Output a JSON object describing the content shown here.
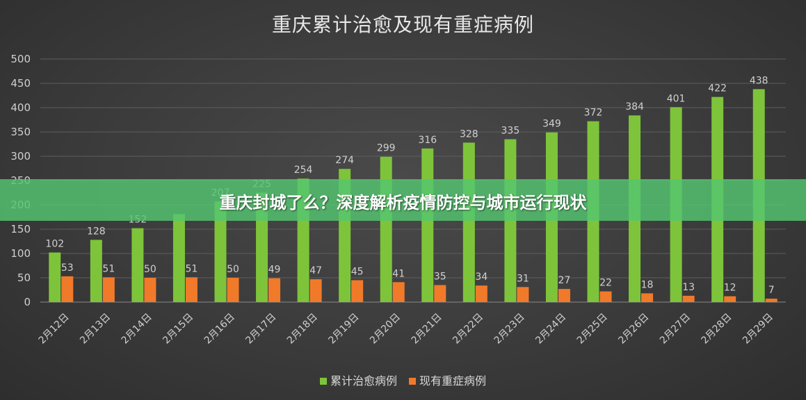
{
  "chart_data": {
    "type": "bar",
    "title": "重庆累计治愈及现有重症病例",
    "categories": [
      "2月12日",
      "2月13日",
      "2月14日",
      "2月15日",
      "2月16日",
      "2月17日",
      "2月18日",
      "2月19日",
      "2月20日",
      "2月21日",
      "2月22日",
      "2月23日",
      "2月24日",
      "2月25日",
      "2月26日",
      "2月27日",
      "2月28日",
      "2月29日"
    ],
    "series": [
      {
        "name": "累计治愈病例",
        "color": "#7ec43a",
        "values": [
          102,
          128,
          152,
          181,
          207,
          225,
          254,
          274,
          299,
          316,
          328,
          335,
          349,
          372,
          384,
          401,
          422,
          438
        ]
      },
      {
        "name": "现有重症病例",
        "color": "#f07a2a",
        "values": [
          53,
          51,
          50,
          51,
          50,
          49,
          47,
          45,
          41,
          35,
          34,
          31,
          27,
          22,
          18,
          13,
          12,
          7
        ]
      }
    ],
    "ylim": [
      0,
      500
    ],
    "yticks": [
      0,
      50,
      100,
      150,
      200,
      250,
      300,
      350,
      400,
      450,
      500
    ],
    "grid": true,
    "legend_position": "bottom",
    "visible_label_flags": [
      [
        true,
        true,
        true,
        false,
        true,
        true,
        true,
        true,
        true,
        true,
        true,
        true,
        true,
        true,
        true,
        true,
        true,
        true
      ],
      [
        true,
        true,
        true,
        true,
        true,
        true,
        true,
        true,
        true,
        true,
        true,
        true,
        true,
        true,
        true,
        true,
        true,
        true
      ]
    ]
  },
  "overlay_banner": {
    "text": "重庆封城了么？深度解析疫情防控与城市运行现状"
  }
}
